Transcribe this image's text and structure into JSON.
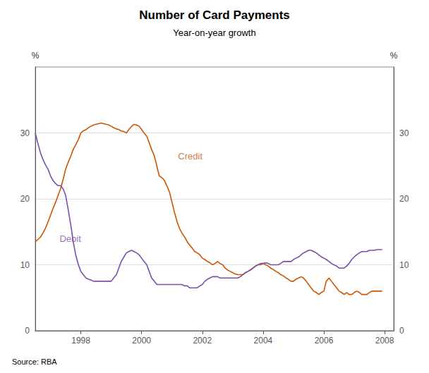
{
  "chart_data": {
    "type": "line",
    "title": "Number of Card Payments",
    "subtitle": "Year-on-year growth",
    "source": "Source: RBA",
    "ylabel": "%",
    "y2label": "%",
    "xlim": [
      1996.5,
      2008.3
    ],
    "xticks": [
      1998,
      2000,
      2002,
      2004,
      2006,
      2008
    ],
    "ylim": [
      0,
      40
    ],
    "yticks": [
      0,
      10,
      20,
      30
    ],
    "y2lim": [
      0,
      40
    ],
    "y2ticks": [
      0,
      10,
      20,
      30
    ],
    "grid": true,
    "x": [
      1996.5,
      1996.58,
      1996.67,
      1996.75,
      1996.83,
      1996.92,
      1997.0,
      1997.08,
      1997.17,
      1997.25,
      1997.33,
      1997.42,
      1997.5,
      1997.58,
      1997.67,
      1997.75,
      1997.83,
      1997.92,
      1998.0,
      1998.08,
      1998.17,
      1998.25,
      1998.33,
      1998.42,
      1998.5,
      1998.58,
      1998.67,
      1998.75,
      1998.83,
      1998.92,
      1999.0,
      1999.08,
      1999.17,
      1999.25,
      1999.33,
      1999.42,
      1999.5,
      1999.58,
      1999.67,
      1999.75,
      1999.83,
      1999.92,
      2000.0,
      2000.08,
      2000.17,
      2000.25,
      2000.33,
      2000.42,
      2000.5,
      2000.58,
      2000.67,
      2000.75,
      2000.83,
      2000.92,
      2001.0,
      2001.08,
      2001.17,
      2001.25,
      2001.33,
      2001.42,
      2001.5,
      2001.58,
      2001.67,
      2001.75,
      2001.83,
      2001.92,
      2002.0,
      2002.08,
      2002.17,
      2002.25,
      2002.33,
      2002.42,
      2002.5,
      2002.58,
      2002.67,
      2002.75,
      2002.83,
      2002.92,
      2003.0,
      2003.08,
      2003.17,
      2003.25,
      2003.33,
      2003.42,
      2003.5,
      2003.58,
      2003.67,
      2003.75,
      2003.83,
      2003.92,
      2004.0,
      2004.08,
      2004.17,
      2004.25,
      2004.33,
      2004.42,
      2004.5,
      2004.58,
      2004.67,
      2004.75,
      2004.83,
      2004.92,
      2005.0,
      2005.08,
      2005.17,
      2005.25,
      2005.33,
      2005.42,
      2005.5,
      2005.58,
      2005.67,
      2005.75,
      2005.83,
      2005.92,
      2006.0,
      2006.08,
      2006.17,
      2006.25,
      2006.33,
      2006.42,
      2006.5,
      2006.58,
      2006.67,
      2006.75,
      2006.83,
      2006.92,
      2007.0,
      2007.08,
      2007.17,
      2007.25,
      2007.33,
      2007.42,
      2007.5,
      2007.58,
      2007.67,
      2007.75,
      2007.83,
      2007.92
    ],
    "series": [
      {
        "color": "#cc5500",
        "values": [
          13.5,
          13.8,
          14.2,
          14.8,
          15.5,
          16.5,
          17.5,
          18.5,
          19.5,
          20.5,
          21.5,
          23.0,
          24.5,
          25.5,
          26.5,
          27.5,
          28.2,
          29.0,
          30.0,
          30.3,
          30.5,
          30.8,
          31.0,
          31.2,
          31.3,
          31.4,
          31.5,
          31.4,
          31.3,
          31.2,
          31.0,
          30.8,
          30.6,
          30.5,
          30.3,
          30.2,
          30.0,
          30.5,
          31.0,
          31.3,
          31.2,
          31.0,
          30.5,
          30.0,
          29.5,
          28.5,
          27.5,
          26.5,
          25.0,
          23.5,
          23.2,
          22.8,
          22.0,
          21.0,
          19.5,
          18.0,
          16.5,
          15.5,
          14.8,
          14.2,
          13.5,
          13.0,
          12.5,
          12.0,
          11.8,
          11.5,
          11.0,
          10.8,
          10.5,
          10.3,
          10.0,
          10.2,
          10.5,
          10.2,
          10.0,
          9.5,
          9.2,
          9.0,
          8.8,
          8.6,
          8.5,
          8.5,
          8.5,
          8.8,
          9.0,
          9.2,
          9.5,
          9.8,
          10.0,
          10.0,
          10.2,
          10.0,
          9.8,
          9.5,
          9.3,
          9.0,
          8.8,
          8.5,
          8.3,
          8.0,
          7.8,
          7.5,
          7.5,
          7.8,
          8.0,
          8.2,
          8.0,
          7.5,
          7.0,
          6.5,
          6.0,
          5.8,
          5.5,
          5.8,
          6.0,
          7.5,
          8.0,
          7.5,
          7.0,
          6.5,
          6.0,
          5.8,
          5.5,
          5.8,
          5.5,
          5.5,
          5.8,
          6.0,
          5.8,
          5.5,
          5.5,
          5.5,
          5.8,
          6.0,
          6.0,
          6.0,
          6.0,
          6.0
        ]
      },
      {
        "color": "#7b4fa6",
        "values": [
          30.0,
          28.5,
          27.0,
          26.0,
          25.2,
          24.5,
          23.5,
          22.8,
          22.3,
          22.0,
          22.0,
          21.5,
          20.5,
          18.5,
          16.0,
          13.5,
          11.5,
          10.0,
          9.0,
          8.5,
          8.0,
          7.8,
          7.7,
          7.5,
          7.5,
          7.5,
          7.5,
          7.5,
          7.5,
          7.5,
          7.5,
          8.0,
          8.5,
          9.5,
          10.5,
          11.2,
          11.8,
          12.0,
          12.2,
          12.0,
          11.8,
          11.5,
          11.0,
          10.5,
          10.0,
          9.0,
          8.0,
          7.5,
          7.0,
          7.0,
          7.0,
          7.0,
          7.0,
          7.0,
          7.0,
          7.0,
          7.0,
          7.0,
          7.0,
          6.8,
          6.8,
          6.5,
          6.5,
          6.5,
          6.5,
          6.8,
          7.0,
          7.5,
          7.8,
          8.0,
          8.2,
          8.2,
          8.2,
          8.0,
          8.0,
          8.0,
          8.0,
          8.0,
          8.0,
          8.0,
          8.0,
          8.2,
          8.5,
          8.8,
          9.0,
          9.2,
          9.5,
          9.8,
          10.0,
          10.2,
          10.2,
          10.3,
          10.2,
          10.0,
          10.0,
          10.0,
          10.0,
          10.2,
          10.5,
          10.5,
          10.5,
          10.5,
          10.8,
          11.0,
          11.2,
          11.5,
          11.8,
          12.0,
          12.2,
          12.2,
          12.0,
          11.8,
          11.5,
          11.2,
          11.0,
          10.8,
          10.5,
          10.2,
          10.0,
          9.8,
          9.5,
          9.5,
          9.5,
          9.8,
          10.2,
          10.8,
          11.2,
          11.5,
          11.8,
          12.0,
          12.0,
          12.0,
          12.2,
          12.2,
          12.2,
          12.3,
          12.3,
          12.3
        ]
      }
    ],
    "annotations": [
      {
        "text": "Credit",
        "x": 2001.2,
        "y": 26.5,
        "color": "#cc5500"
      },
      {
        "text": "Debit",
        "x": 1997.3,
        "y": 14.0,
        "color": "#7b4fa6"
      }
    ]
  }
}
